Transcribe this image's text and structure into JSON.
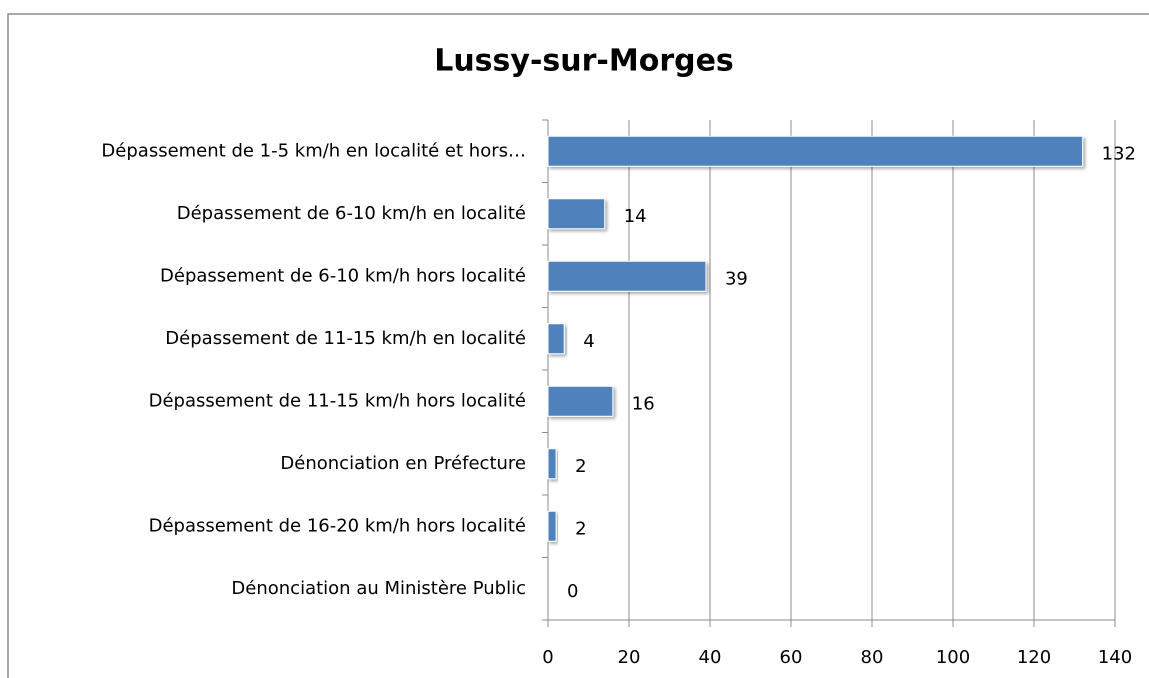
{
  "chart_data": {
    "type": "bar",
    "orientation": "horizontal",
    "title": "Lussy-sur-Morges",
    "categories": [
      "Dépassement de 1-5 km/h en localité et hors…",
      "Dépassement de 6-10 km/h en localité",
      "Dépassement de 6-10 km/h hors localité",
      "Dépassement de 11-15 km/h en localité",
      "Dépassement de 11-15 km/h hors localité",
      "Dénonciation en Préfecture",
      "Dépassement de 16-20 km/h hors localité",
      "Dénonciation au Ministère Public"
    ],
    "values": [
      132,
      14,
      39,
      4,
      16,
      2,
      2,
      0
    ],
    "color": "#4f81bd",
    "xlim": [
      0,
      140
    ],
    "xticks": [
      0,
      20,
      40,
      60,
      80,
      100,
      120,
      140
    ],
    "grid": true
  }
}
